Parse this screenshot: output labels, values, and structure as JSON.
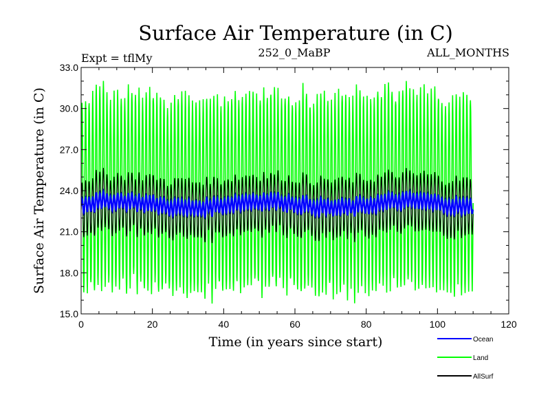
{
  "chart_data": {
    "type": "line",
    "title": "Surface Air Temperature (in C)",
    "subtitle_left": "Expt = tflMy",
    "subtitle_center": "252_0_MaBP",
    "subtitle_right": "ALL_MONTHS",
    "xlabel": "Time (in years since start)",
    "ylabel": "Surface Air Temperature (in C)",
    "xlim": [
      0,
      120
    ],
    "ylim": [
      15.0,
      33.0
    ],
    "x_ticks": [
      "0",
      "20",
      "40",
      "60",
      "80",
      "100",
      "120"
    ],
    "y_ticks": [
      "15.0",
      "18.0",
      "21.0",
      "24.0",
      "27.0",
      "30.0",
      "33.0"
    ],
    "x_range_data": [
      0,
      110
    ],
    "series": [
      {
        "name": "Land",
        "color": "#00ff00",
        "monthly_cycle_mean": 23.9,
        "annual_max_approx": 31.2,
        "annual_min_approx": 17.0
      },
      {
        "name": "AllSurf",
        "color": "#000000",
        "monthly_cycle_mean": 22.9,
        "annual_max_approx": 24.5,
        "annual_min_approx": 20.4
      },
      {
        "name": "Ocean",
        "color": "#0000ff",
        "monthly_cycle_mean": 23.0,
        "annual_max_approx": 23.6,
        "annual_min_approx": 22.5
      }
    ],
    "legend": [
      {
        "label": "Ocean",
        "color": "#0000ff"
      },
      {
        "label": "Land",
        "color": "#00ff00"
      },
      {
        "label": "AllSurf",
        "color": "#000000"
      }
    ]
  }
}
